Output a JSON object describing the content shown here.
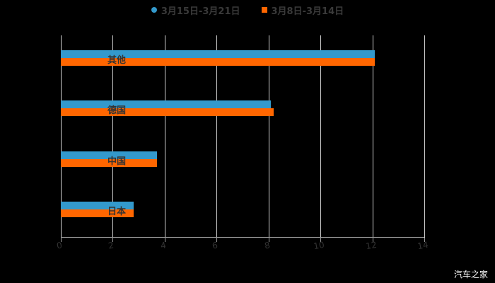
{
  "chart_data": {
    "type": "bar",
    "orientation": "horizontal",
    "title": "",
    "categories": [
      "其他",
      "德国",
      "中国",
      "日本"
    ],
    "series": [
      {
        "name": "3月15日-3月21日",
        "color": "#3399cc",
        "values": [
          12.1,
          8.1,
          3.7,
          2.8
        ]
      },
      {
        "name": "3月8日-3月14日",
        "color": "#ff6600",
        "values": [
          12.1,
          8.2,
          3.7,
          2.8
        ]
      }
    ],
    "xlabel": "",
    "ylabel": "",
    "xlim": [
      0,
      14
    ],
    "xticks": [
      "0",
      "2",
      "4",
      "6",
      "8",
      "10",
      "12",
      "14"
    ],
    "grid": true,
    "legend_position": "top"
  },
  "legend": {
    "series1_label": "3月15日-3月21日",
    "series2_label": "3月8日-3月14日"
  },
  "watermark": "汽车之家"
}
